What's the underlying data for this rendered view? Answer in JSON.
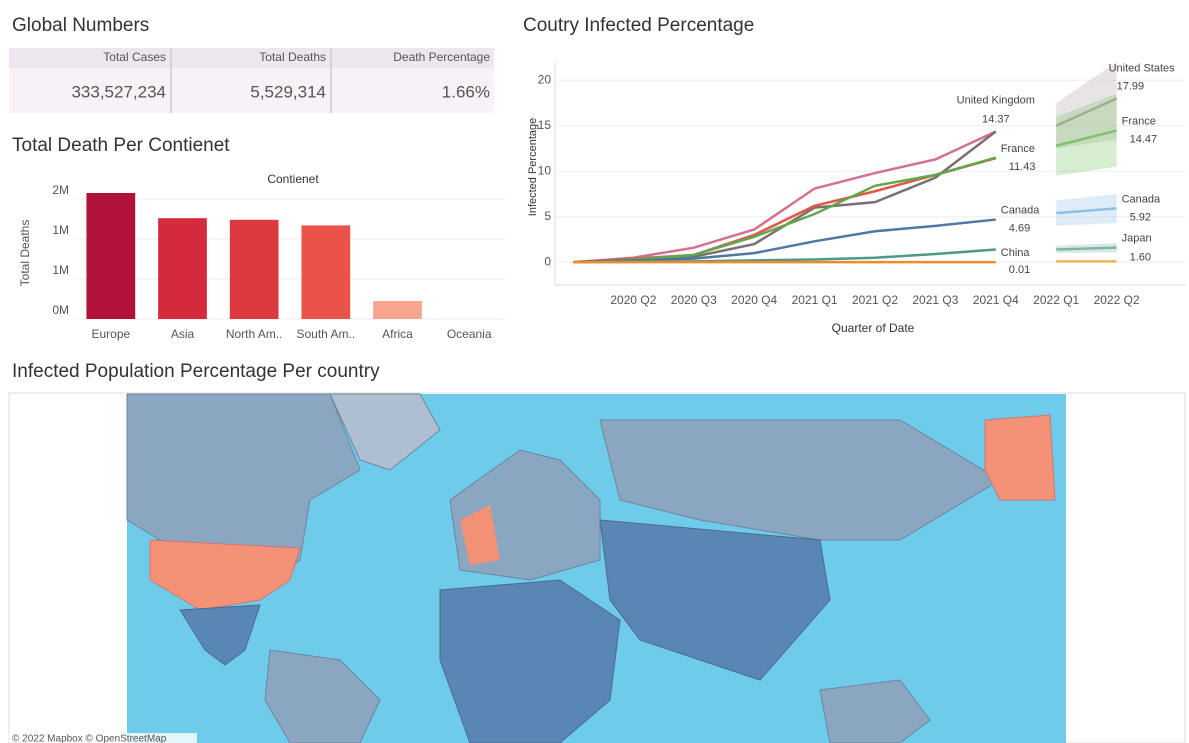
{
  "global_numbers": {
    "title": "Global Numbers",
    "columns": [
      "Total Cases",
      "Total Deaths",
      "Death Percentage"
    ],
    "values": [
      "333,527,234",
      "5,529,314",
      "1.66%"
    ]
  },
  "chart_data": [
    {
      "type": "bar",
      "title": "Total Death Per Contienet",
      "x_label": "Contienet",
      "y_label": "Total Deaths",
      "categories": [
        "Europe",
        "Asia",
        "North Am..",
        "South Am..",
        "Africa",
        "Oceania"
      ],
      "values": [
        1575000,
        1260000,
        1240000,
        1170000,
        225000,
        8000
      ],
      "colors": [
        "#b01237",
        "#d52a3c",
        "#dd3a3f",
        "#e9534a",
        "#f8a58f",
        "#fde3da"
      ],
      "ylim": [
        0,
        1650000
      ],
      "yticks": [
        {
          "value": 0,
          "label": "0M"
        },
        {
          "value": 500000,
          "label": "1M"
        },
        {
          "value": 1000000,
          "label": "1M"
        },
        {
          "value": 1500000,
          "label": "2M"
        }
      ],
      "grid": true
    },
    {
      "type": "line",
      "title": "Coutry Infected Percentage",
      "x_label": "Quarter of Date",
      "y_label": "Infected Percentage",
      "categories": [
        null,
        "2020 Q2",
        "2020 Q3",
        "2020 Q4",
        "2021 Q1",
        "2021 Q2",
        "2021 Q3",
        "2021 Q4",
        "2022 Q1",
        "2022 Q2"
      ],
      "ylim": [
        -2.5,
        22
      ],
      "yticks": [
        0,
        5,
        10,
        15,
        20
      ],
      "grid": true,
      "series": [
        {
          "name": "United Kingdom",
          "color": "#d3718f",
          "values": [
            0,
            0.5,
            1.6,
            3.6,
            8.1,
            9.8,
            11.3,
            14.37,
            null,
            null
          ]
        },
        {
          "color": "#7b6f72",
          "values": [
            0,
            0.3,
            0.6,
            2.0,
            6.0,
            6.6,
            9.3,
            14.37,
            null,
            null
          ]
        },
        {
          "name": "France",
          "color": "#e0584a",
          "values": [
            0,
            0.4,
            0.8,
            3.0,
            6.2,
            7.8,
            9.6,
            11.43,
            null,
            null
          ]
        },
        {
          "color": "#62a84a",
          "values": [
            0,
            0.3,
            0.8,
            2.8,
            5.3,
            8.4,
            9.6,
            11.5,
            null,
            null
          ]
        },
        {
          "name": "Canada",
          "color": "#4f78a3",
          "values": [
            0,
            0.2,
            0.4,
            1.0,
            2.3,
            3.4,
            4.0,
            4.69,
            null,
            null
          ]
        },
        {
          "color": "#4b9a8a",
          "values": [
            0,
            0.05,
            0.1,
            0.2,
            0.3,
            0.5,
            0.9,
            1.4,
            null,
            null
          ]
        },
        {
          "name": "China",
          "color": "#ef8c2a",
          "values": [
            0,
            0.01,
            0.01,
            0.01,
            0.01,
            0.01,
            0.01,
            0.01,
            null,
            null
          ]
        },
        {
          "name": "United States",
          "color": "#b3a3a6",
          "values": [
            null,
            null,
            null,
            null,
            null,
            null,
            null,
            null,
            15.0,
            17.99
          ],
          "lower": [
            null,
            null,
            null,
            null,
            null,
            null,
            null,
            null,
            12.5,
            13.5
          ],
          "upper": [
            null,
            null,
            null,
            null,
            null,
            null,
            null,
            null,
            17.5,
            22
          ]
        },
        {
          "name": "France",
          "color": "#7cc36a",
          "values": [
            null,
            null,
            null,
            null,
            null,
            null,
            null,
            null,
            12.8,
            14.47
          ],
          "lower": [
            null,
            null,
            null,
            null,
            null,
            null,
            null,
            null,
            9.5,
            10.5
          ],
          "upper": [
            null,
            null,
            null,
            null,
            null,
            null,
            null,
            null,
            16,
            18.5
          ]
        },
        {
          "name": "Canada",
          "color": "#8fbfe3",
          "values": [
            null,
            null,
            null,
            null,
            null,
            null,
            null,
            null,
            5.4,
            5.92
          ],
          "lower": [
            null,
            null,
            null,
            null,
            null,
            null,
            null,
            null,
            4.0,
            4.3
          ],
          "upper": [
            null,
            null,
            null,
            null,
            null,
            null,
            null,
            null,
            6.8,
            7.5
          ]
        },
        {
          "name": "Japan",
          "color": "#7fb5a8",
          "values": [
            null,
            null,
            null,
            null,
            null,
            null,
            null,
            null,
            1.4,
            1.6
          ],
          "value_labels": [
            null,
            null,
            null,
            null,
            null,
            null,
            null,
            null,
            null,
            "1.60"
          ],
          "lower": [
            null,
            null,
            null,
            null,
            null,
            null,
            null,
            null,
            1.0,
            1.1
          ],
          "upper": [
            null,
            null,
            null,
            null,
            null,
            null,
            null,
            null,
            1.8,
            2.1
          ]
        },
        {
          "color": "#f4b45a",
          "values": [
            null,
            null,
            null,
            null,
            null,
            null,
            null,
            null,
            0.1,
            0.1
          ]
        }
      ]
    }
  ],
  "map": {
    "title": "Infected Population Percentage Per country",
    "attribution": "© 2022 Mapbox © OpenStreetMap"
  }
}
